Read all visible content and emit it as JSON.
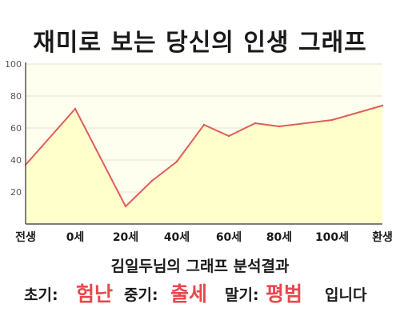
{
  "title": "재미로 보는 당신의 인생 그래프",
  "chart_data": {
    "type": "area",
    "title": "재미로 보는 당신의 인생 그래프",
    "x_ticks": [
      "전생",
      "0세",
      "20세",
      "40세",
      "60세",
      "80세",
      "100세",
      "환생"
    ],
    "y_ticks": [
      "20",
      "40",
      "60",
      "80",
      "100"
    ],
    "ylim": [
      0,
      100
    ],
    "series": [
      {
        "points": [
          {
            "x": "전생",
            "y": 37
          },
          {
            "x": "0세",
            "y": 72
          },
          {
            "x": "20세",
            "y": 11
          },
          {
            "x": "30세",
            "y": 27
          },
          {
            "x": "40세",
            "y": 39
          },
          {
            "x": "50세",
            "y": 62
          },
          {
            "x": "60세",
            "y": 55
          },
          {
            "x": "70세",
            "y": 63
          },
          {
            "x": "80세",
            "y": 61
          },
          {
            "x": "100세",
            "y": 65
          },
          {
            "x": "환생",
            "y": 74
          }
        ]
      }
    ],
    "grid": true,
    "colors": {
      "line": "#e05c5c",
      "fill": "#ffffcc",
      "plot_bg": "#fffff0",
      "grid": "#e2e2c8"
    }
  },
  "result": {
    "heading": "김일두님의 그래프 분석결과",
    "early_label": "초기:",
    "early_value": "험난",
    "mid_label": "중기:",
    "mid_value": "출세",
    "late_label": "말기:",
    "late_value": "평범",
    "ending": "입니다"
  }
}
